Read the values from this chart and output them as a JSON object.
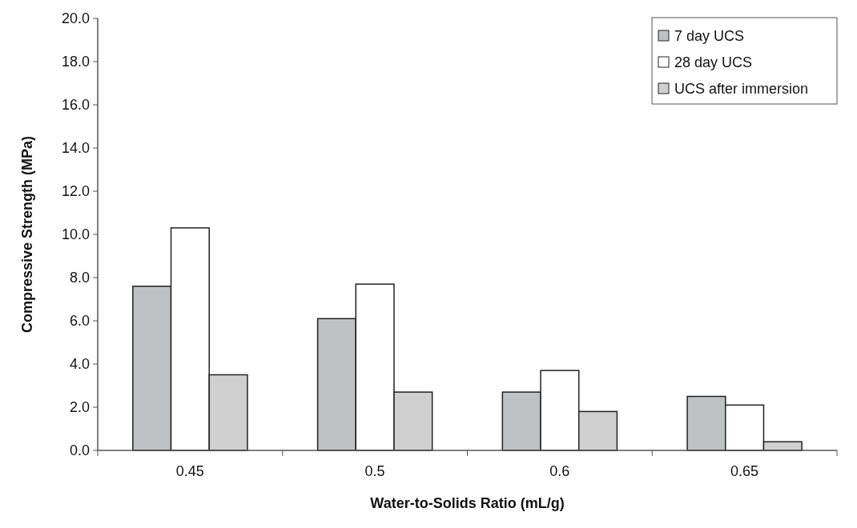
{
  "chart_data": {
    "type": "bar",
    "xlabel": "Water-to-Solids Ratio (mL/g)",
    "ylabel": "Compressive Strength (MPa)",
    "categories": [
      "0.45",
      "0.5",
      "0.6",
      "0.65"
    ],
    "series": [
      {
        "name": "7 day UCS",
        "color": "#c0c1c3",
        "values": [
          7.6,
          6.1,
          2.7,
          2.5
        ]
      },
      {
        "name": "28 day UCS",
        "color": "#ffffff",
        "values": [
          10.3,
          7.7,
          3.7,
          2.1
        ]
      },
      {
        "name": "UCS after immersion",
        "color": "#d0d0d0",
        "values": [
          3.5,
          2.7,
          1.8,
          0.4
        ]
      }
    ],
    "ylim": [
      0,
      20
    ],
    "yticks": [
      {
        "value": 0,
        "label": "0.0"
      },
      {
        "value": 2,
        "label": "2.0"
      },
      {
        "value": 4,
        "label": "4.0"
      },
      {
        "value": 6,
        "label": "6.0"
      },
      {
        "value": 8,
        "label": "8.0"
      },
      {
        "value": 10,
        "label": "10.0"
      },
      {
        "value": 12,
        "label": "12.0"
      },
      {
        "value": 14,
        "label": "14.0"
      },
      {
        "value": 16,
        "label": "16.0"
      },
      {
        "value": 18,
        "label": "18.0"
      },
      {
        "value": 20,
        "label": "20.0"
      }
    ],
    "grid": false,
    "legend": "top right"
  }
}
